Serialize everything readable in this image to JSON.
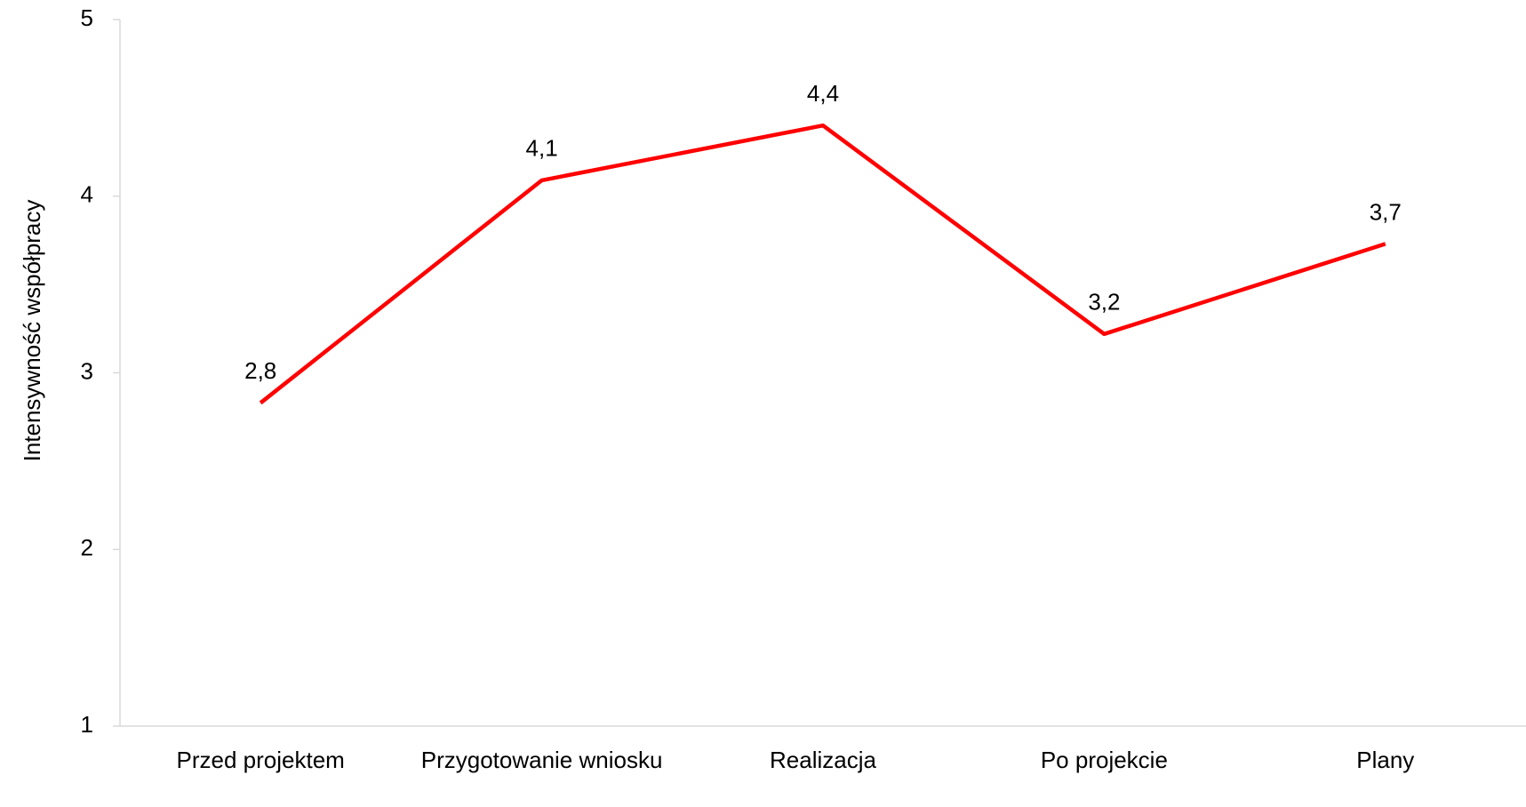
{
  "chart_data": {
    "type": "line",
    "y_label": "Intensywność współpracy",
    "categories": [
      "Przed projektem",
      "Przygotowanie wniosku",
      "Realizacja",
      "Po projekcie",
      "Plany"
    ],
    "series": [
      {
        "color": "#ff0000",
        "values": [
          2.83,
          4.09,
          4.4,
          3.22,
          3.73
        ],
        "value_labels": [
          "2,8",
          "4,1",
          "4,4",
          "3,2",
          "3,7"
        ]
      }
    ],
    "ylim": [
      1,
      5
    ],
    "yticks": [
      1,
      2,
      3,
      4,
      5
    ],
    "grid": false
  }
}
